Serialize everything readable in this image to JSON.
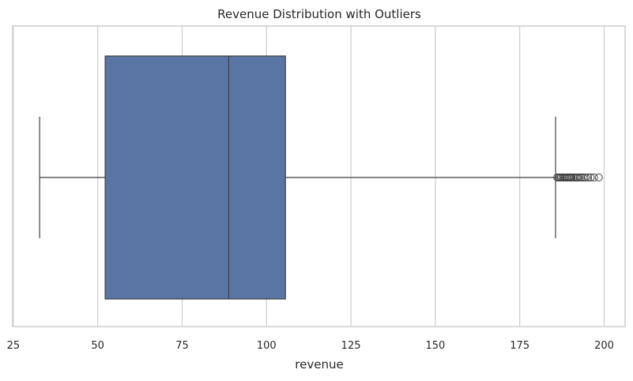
{
  "chart_data": {
    "type": "boxplot",
    "title": "Revenue Distribution with Outliers",
    "xlabel": "revenue",
    "ylabel": "",
    "orientation": "horizontal",
    "xlim": [
      24.8,
      206.2
    ],
    "xticks": [
      25,
      50,
      75,
      100,
      125,
      150,
      175,
      200
    ],
    "xtick_labels": [
      "25",
      "50",
      "75",
      "100",
      "125",
      "150",
      "175",
      "200"
    ],
    "grid": true,
    "color": "#5975a4",
    "box": {
      "whisker_low": 32.8,
      "q1": 52.2,
      "median": 88.8,
      "q3": 105.6,
      "whisker_high": 185.6
    },
    "outliers": [
      186.1,
      186.5,
      186.9,
      187.2,
      187.6,
      188.0,
      188.4,
      188.8,
      189.2,
      189.6,
      190.0,
      190.4,
      190.9,
      191.3,
      191.8,
      192.2,
      192.8,
      193.3,
      193.9,
      194.5,
      195.2,
      196.0,
      197.0,
      198.4
    ]
  }
}
